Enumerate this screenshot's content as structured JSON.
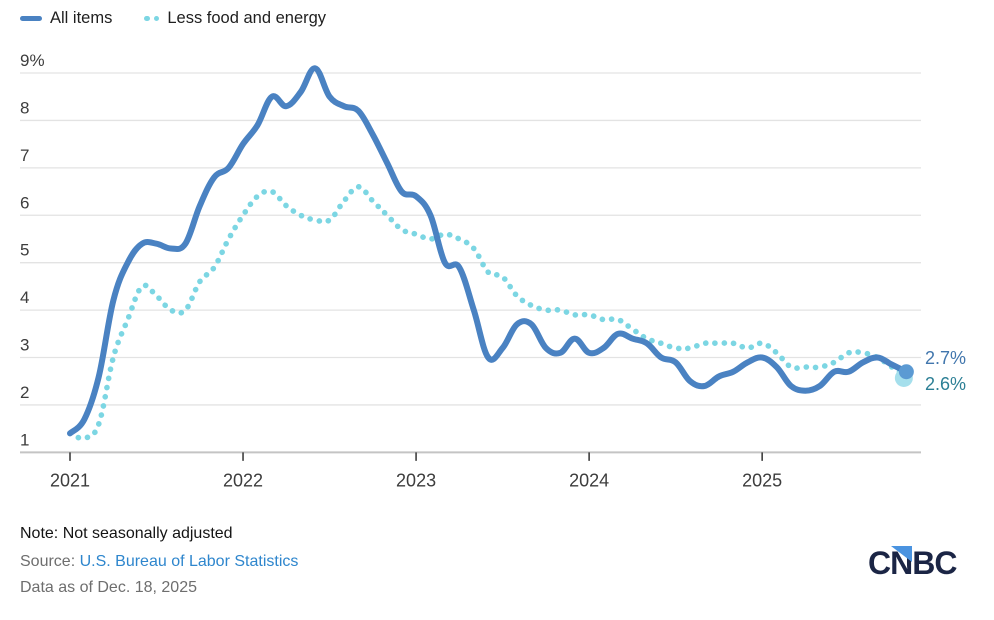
{
  "legend": {
    "items": [
      {
        "label": "All items",
        "swatch": "solid-line",
        "color": "#4a82c2"
      },
      {
        "label": "Less food and energy",
        "swatch": "dots",
        "color": "#7cd6e3"
      }
    ]
  },
  "chart_data": {
    "type": "line",
    "title": "",
    "x_unit": "month",
    "x_start": "Jan 2021",
    "x_end": "Nov 2025",
    "x_tick_labels": [
      "2021",
      "2022",
      "2023",
      "2024",
      "2025"
    ],
    "x_tick_month_index": [
      0,
      12,
      24,
      36,
      48
    ],
    "y_tick_values": [
      9,
      8,
      7,
      6,
      5,
      4,
      3,
      2,
      1
    ],
    "y_tick_labels": [
      "9%",
      "8",
      "7",
      "6",
      "5",
      "4",
      "3",
      "2",
      "1"
    ],
    "ylim": [
      1,
      9
    ],
    "grid": true,
    "legend_position": "top-left",
    "series": [
      {
        "name": "All items",
        "style": "solid",
        "color": "#4a82c2",
        "end_dot_color": "#5b9ad3",
        "end_label": "2.7%",
        "end_label_color": "#4176ad",
        "values": [
          1.4,
          1.7,
          2.6,
          4.2,
          5.0,
          5.4,
          5.4,
          5.3,
          5.4,
          6.2,
          6.8,
          7.0,
          7.5,
          7.9,
          8.5,
          8.3,
          8.6,
          9.1,
          8.5,
          8.3,
          8.2,
          7.7,
          7.1,
          6.5,
          6.4,
          6.0,
          5.0,
          4.9,
          4.0,
          3.0,
          3.2,
          3.7,
          3.7,
          3.2,
          3.1,
          3.4,
          3.1,
          3.2,
          3.5,
          3.4,
          3.3,
          3.0,
          2.9,
          2.5,
          2.4,
          2.6,
          2.7,
          2.9,
          3.0,
          2.8,
          2.4,
          2.3,
          2.4,
          2.7,
          2.7,
          2.9,
          3.0,
          2.85,
          2.7
        ]
      },
      {
        "name": "Less food and energy",
        "style": "dotted",
        "color": "#7cd6e3",
        "end_dot_color": "#a5dfec",
        "end_label": "2.6%",
        "end_label_color": "#2c7f95",
        "values": [
          1.4,
          1.3,
          1.6,
          3.0,
          3.8,
          4.5,
          4.3,
          4.0,
          4.0,
          4.6,
          4.9,
          5.5,
          6.0,
          6.4,
          6.5,
          6.2,
          6.0,
          5.9,
          5.9,
          6.3,
          6.6,
          6.3,
          6.0,
          5.7,
          5.6,
          5.5,
          5.6,
          5.5,
          5.3,
          4.8,
          4.7,
          4.3,
          4.1,
          4.0,
          4.0,
          3.9,
          3.9,
          3.8,
          3.8,
          3.6,
          3.4,
          3.3,
          3.2,
          3.2,
          3.3,
          3.3,
          3.3,
          3.2,
          3.3,
          3.1,
          2.8,
          2.8,
          2.8,
          2.9,
          3.1,
          3.1,
          3.0,
          2.8,
          2.6
        ]
      }
    ],
    "colors": {
      "gridline": "#e3e3e3",
      "baseline": "#c4c4c4",
      "tick": "#3f3f3f",
      "axis_text": "#3d3d3d"
    }
  },
  "footer": {
    "note": "Note: Not seasonally adjusted",
    "source_prefix": "Source: ",
    "source_link": "U.S. Bureau of Labor Statistics",
    "source_link_color": "#2e86cd",
    "data_as_of": "Data as of Dec. 18, 2025"
  },
  "logo": {
    "text": "CNBC",
    "navy": "#1b2545",
    "light_blue": "#4a93e0"
  }
}
